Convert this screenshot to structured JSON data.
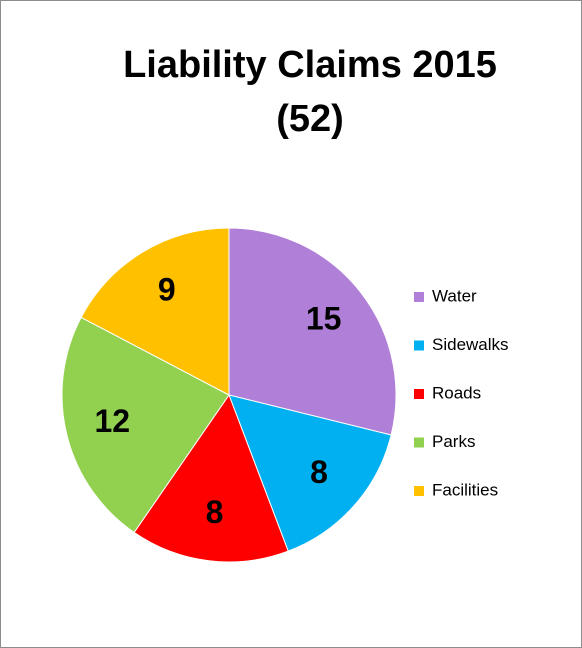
{
  "chart_data": {
    "type": "pie",
    "title": "Liability Claims 2015 (52)",
    "categories": [
      "Water",
      "Sidewalks",
      "Roads",
      "Parks",
      "Facilities"
    ],
    "values": [
      15,
      8,
      8,
      12,
      9
    ],
    "colors": [
      "#b07fd8",
      "#00b0f0",
      "#ff0000",
      "#92d050",
      "#ffc000"
    ],
    "legend": "right"
  }
}
